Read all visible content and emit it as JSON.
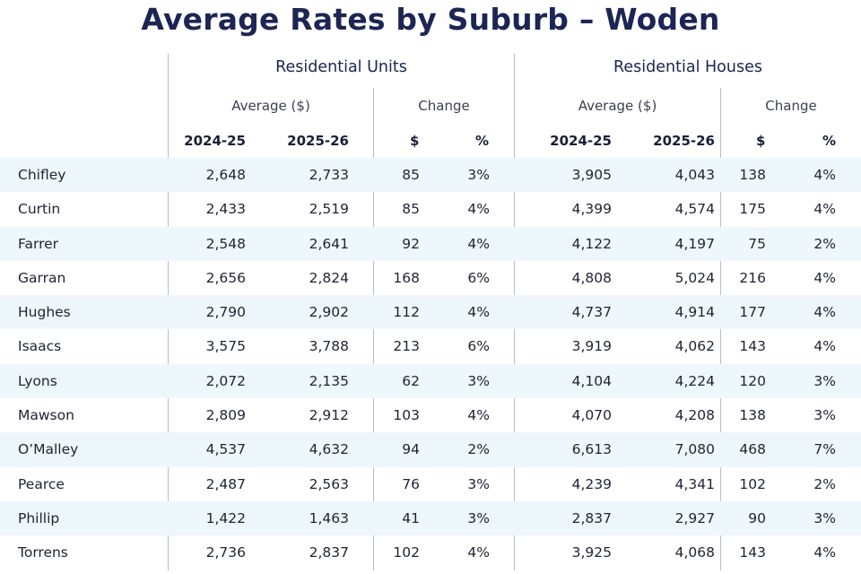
{
  "title": "Average Rates by Suburb – Woden",
  "groups": {
    "units": "Residential Units",
    "houses": "Residential Houses"
  },
  "subheaders": {
    "average": "Average ($)",
    "change": "Change"
  },
  "columns": {
    "y1": "2024-25",
    "y2": "2025-26",
    "dollar": "$",
    "pct": "%"
  },
  "rows": [
    {
      "suburb": "Chifley",
      "u1": "2,648",
      "u2": "2,733",
      "ud": "85",
      "up": "3%",
      "h1": "3,905",
      "h2": "4,043",
      "hd": "138",
      "hp": "4%"
    },
    {
      "suburb": "Curtin",
      "u1": "2,433",
      "u2": "2,519",
      "ud": "85",
      "up": "4%",
      "h1": "4,399",
      "h2": "4,574",
      "hd": "175",
      "hp": "4%"
    },
    {
      "suburb": "Farrer",
      "u1": "2,548",
      "u2": "2,641",
      "ud": "92",
      "up": "4%",
      "h1": "4,122",
      "h2": "4,197",
      "hd": "75",
      "hp": "2%"
    },
    {
      "suburb": "Garran",
      "u1": "2,656",
      "u2": "2,824",
      "ud": "168",
      "up": "6%",
      "h1": "4,808",
      "h2": "5,024",
      "hd": "216",
      "hp": "4%"
    },
    {
      "suburb": "Hughes",
      "u1": "2,790",
      "u2": "2,902",
      "ud": "112",
      "up": "4%",
      "h1": "4,737",
      "h2": "4,914",
      "hd": "177",
      "hp": "4%"
    },
    {
      "suburb": "Isaacs",
      "u1": "3,575",
      "u2": "3,788",
      "ud": "213",
      "up": "6%",
      "h1": "3,919",
      "h2": "4,062",
      "hd": "143",
      "hp": "4%"
    },
    {
      "suburb": "Lyons",
      "u1": "2,072",
      "u2": "2,135",
      "ud": "62",
      "up": "3%",
      "h1": "4,104",
      "h2": "4,224",
      "hd": "120",
      "hp": "3%"
    },
    {
      "suburb": "Mawson",
      "u1": "2,809",
      "u2": "2,912",
      "ud": "103",
      "up": "4%",
      "h1": "4,070",
      "h2": "4,208",
      "hd": "138",
      "hp": "3%"
    },
    {
      "suburb": "O’Malley",
      "u1": "4,537",
      "u2": "4,632",
      "ud": "94",
      "up": "2%",
      "h1": "6,613",
      "h2": "7,080",
      "hd": "468",
      "hp": "7%"
    },
    {
      "suburb": "Pearce",
      "u1": "2,487",
      "u2": "2,563",
      "ud": "76",
      "up": "3%",
      "h1": "4,239",
      "h2": "4,341",
      "hd": "102",
      "hp": "2%"
    },
    {
      "suburb": "Phillip",
      "u1": "1,422",
      "u2": "1,463",
      "ud": "41",
      "up": "3%",
      "h1": "2,837",
      "h2": "2,927",
      "hd": "90",
      "hp": "3%"
    },
    {
      "suburb": "Torrens",
      "u1": "2,736",
      "u2": "2,837",
      "ud": "102",
      "up": "4%",
      "h1": "3,925",
      "h2": "4,068",
      "hd": "143",
      "hp": "4%"
    }
  ]
}
